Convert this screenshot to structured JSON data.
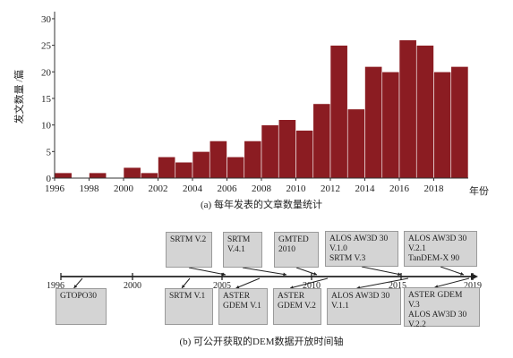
{
  "chart_data": {
    "type": "bar",
    "title": "",
    "caption": "(a) 每年发表的文章数量统计",
    "xlabel": "年份",
    "ylabel": "发文数量 /篇",
    "ylim": [
      0,
      31
    ],
    "yticks": [
      0,
      5,
      10,
      15,
      20,
      25,
      30
    ],
    "xticks": [
      "1996",
      "1998",
      "2000",
      "2002",
      "2004",
      "2006",
      "2008",
      "2010",
      "2012",
      "2014",
      "2016",
      "2018"
    ],
    "categories": [
      "1996",
      "1997",
      "1998",
      "1999",
      "2000",
      "2001",
      "2002",
      "2003",
      "2004",
      "2005",
      "2006",
      "2007",
      "2008",
      "2009",
      "2010",
      "2011",
      "2012",
      "2013",
      "2014",
      "2015",
      "2016",
      "2017",
      "2018",
      "2019"
    ],
    "values": [
      1,
      0,
      1,
      0,
      2,
      1,
      4,
      3,
      5,
      7,
      4,
      7,
      10,
      11,
      9,
      14,
      25,
      13,
      21,
      20,
      26,
      25,
      20,
      21
    ],
    "bar_color": "#8b1c22",
    "grid": false
  },
  "timeline": {
    "caption": "(b) 可公开获取的DEM数据开放时间轴",
    "start_year": 1996,
    "end_year": 2019,
    "tick_labels": [
      {
        "year": 1996,
        "label": "1996"
      },
      {
        "year": 2000,
        "label": "2000"
      },
      {
        "year": 2005,
        "label": "2005"
      },
      {
        "year": 2010,
        "label": "2010"
      },
      {
        "year": 2015,
        "label": "2015"
      },
      {
        "year": 2019,
        "label": "2019"
      }
    ],
    "above": [
      {
        "year": 2005,
        "lines": [
          "SRTM V.2"
        ]
      },
      {
        "year": 2008,
        "lines": [
          "SRTM",
          "V.4.1"
        ]
      },
      {
        "year": 2010,
        "lines": [
          "GMTED",
          "2010"
        ]
      },
      {
        "year": 2015,
        "lines": [
          "ALOS AW3D 30",
          "V.1.0",
          "SRTM V.3"
        ]
      },
      {
        "year": 2019,
        "lines": [
          "ALOS AW3D 30",
          "V.2.1",
          "TanDEM-X 90"
        ]
      }
    ],
    "below": [
      {
        "year": 1997,
        "lines": [
          "GTOPO30"
        ]
      },
      {
        "year": 2003,
        "lines": [
          "SRTM V.1"
        ]
      },
      {
        "year": 2007,
        "lines": [
          "ASTER",
          "GDEM V.1"
        ]
      },
      {
        "year": 2011,
        "lines": [
          "ASTER",
          "GDEM V.2"
        ]
      },
      {
        "year": 2016,
        "lines": [
          "ALOS AW3D 30",
          "V.1.1"
        ]
      },
      {
        "year": 2019,
        "lines": [
          "ASTER GDEM",
          "V.3",
          "ALOS AW3D 30",
          "V.2.2"
        ]
      }
    ],
    "box_color": "#d4d4d4"
  }
}
